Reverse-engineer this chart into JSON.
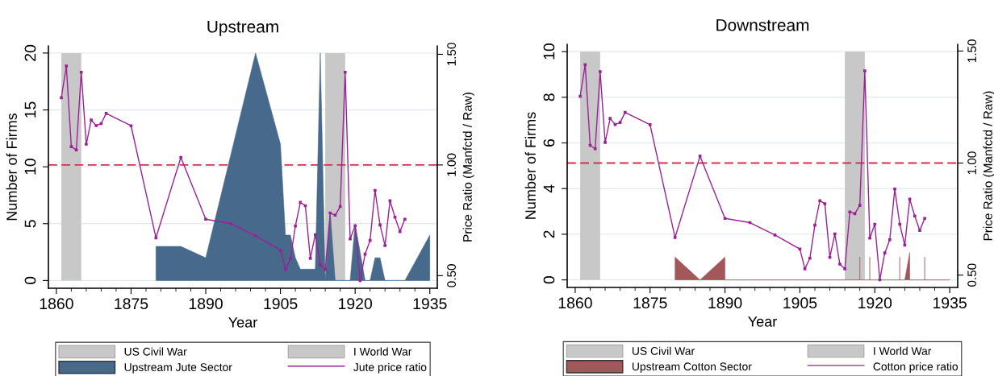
{
  "chart_data": [
    {
      "type": "area",
      "title": "Upstream",
      "xlabel": "Year",
      "ylabel": "Number of Firms",
      "y2label": "Price Ratio (Manfctd / Raw)",
      "xlim": [
        1858.4,
        1936.5
      ],
      "xticks": [
        1860,
        {
          "value": 1863,
          "label": null
        },
        {
          "value": 1866,
          "label": null
        },
        {
          "value": 1869,
          "label": null
        },
        {
          "value": 1872,
          "label": null
        },
        1875,
        {
          "value": 1878,
          "label": null
        },
        {
          "value": 1881,
          "label": null
        },
        {
          "value": 1884,
          "label": null
        },
        {
          "value": 1887,
          "label": null
        },
        1890,
        {
          "value": 1893,
          "label": null
        },
        {
          "value": 1896,
          "label": null
        },
        {
          "value": 1899,
          "label": null
        },
        {
          "value": 1902,
          "label": null
        },
        1905,
        {
          "value": 1908,
          "label": null
        },
        {
          "value": 1911,
          "label": null
        },
        {
          "value": 1914,
          "label": null
        },
        {
          "value": 1917,
          "label": null
        },
        1920,
        {
          "value": 1923,
          "label": null
        },
        {
          "value": 1926,
          "label": null
        },
        {
          "value": 1929,
          "label": null
        },
        {
          "value": 1932,
          "label": null
        },
        1935
      ],
      "ylim": [
        -0.68,
        20.63
      ],
      "yticks": [
        0,
        5,
        10,
        15,
        20
      ],
      "y2lim": [
        0.443,
        1.538
      ],
      "y2ticks": [
        {
          "value": 0.5,
          "label": "0.50"
        },
        {
          "value": 1.0,
          "label": "1.00"
        },
        {
          "value": 1.5,
          "label": "1.50"
        }
      ],
      "grid": "y",
      "legend": "bottom",
      "bands": [
        {
          "axis": "x",
          "from": 1861,
          "to": 1865,
          "label": "US Civil War",
          "color": "#c8c8c8"
        },
        {
          "axis": "x",
          "from": 1914,
          "to": 1918,
          "label": "I World War",
          "color": "#c8c8c8"
        }
      ],
      "ref_lines": [
        {
          "axis": "y2",
          "value": 1.0,
          "color": "#d6304c",
          "line_style": "dashed"
        }
      ],
      "series": [
        {
          "name": "Upstream Jute Sector",
          "color": "#476a8c",
          "x": [
            1880,
            1885,
            1890,
            1900,
            1905,
            1906,
            1907,
            1908,
            1909,
            1910,
            1911,
            1912,
            1913,
            1914,
            1915,
            1916,
            1917,
            1918,
            1919,
            1920,
            1922,
            1923,
            1924,
            1925,
            1926,
            1927,
            1928,
            1929,
            1930,
            1935
          ],
          "values": [
            3,
            3,
            2,
            20,
            12,
            4,
            4,
            2,
            1,
            1,
            1,
            1,
            20,
            0,
            6,
            0,
            0,
            0,
            0,
            5,
            0,
            0,
            2,
            2,
            0,
            0,
            0,
            0,
            0,
            4
          ]
        },
        {
          "name": "Jute price ratio",
          "type": "line",
          "axis": "y2",
          "color": "#9b2196",
          "marker": "square",
          "line_style": "solid",
          "x": [
            1861,
            1862,
            1863,
            1864,
            1865,
            1866,
            1867,
            1868,
            1869,
            1870,
            1875,
            1880,
            1885,
            1890,
            1895,
            1900,
            1905,
            1906,
            1907,
            1908,
            1909,
            1910,
            1911,
            1912,
            1913,
            1914,
            1915,
            1916,
            1917,
            1918,
            1919,
            1920,
            1921,
            1922,
            1923,
            1924,
            1925,
            1926,
            1927,
            1928,
            1929,
            1930
          ],
          "values": [
            1.304,
            1.447,
            1.083,
            1.068,
            1.419,
            1.094,
            1.203,
            1.178,
            1.187,
            1.233,
            1.177,
            0.671,
            1.034,
            0.755,
            0.735,
            0.68,
            0.615,
            0.528,
            0.576,
            0.724,
            0.831,
            0.816,
            0.578,
            0.685,
            0.549,
            0.528,
            0.783,
            0.773,
            0.812,
            1.419,
            0.666,
            0.725,
            0.478,
            0.597,
            0.659,
            0.885,
            0.729,
            0.636,
            0.838,
            0.764,
            0.699,
            0.755
          ]
        }
      ]
    },
    {
      "type": "area",
      "title": "Downstream",
      "xlabel": "Year",
      "ylabel": "Number of Firms",
      "y2label": "Price Ratio (Manfctd / Raw)",
      "xlim": [
        1858.4,
        1936.6
      ],
      "xticks": [
        1860,
        {
          "value": 1863,
          "label": null
        },
        {
          "value": 1866,
          "label": null
        },
        {
          "value": 1869,
          "label": null
        },
        {
          "value": 1872,
          "label": null
        },
        1875,
        {
          "value": 1878,
          "label": null
        },
        {
          "value": 1881,
          "label": null
        },
        {
          "value": 1884,
          "label": null
        },
        {
          "value": 1887,
          "label": null
        },
        1890,
        {
          "value": 1893,
          "label": null
        },
        {
          "value": 1896,
          "label": null
        },
        {
          "value": 1899,
          "label": null
        },
        {
          "value": 1902,
          "label": null
        },
        1905,
        {
          "value": 1908,
          "label": null
        },
        {
          "value": 1911,
          "label": null
        },
        {
          "value": 1914,
          "label": null
        },
        {
          "value": 1917,
          "label": null
        },
        1920,
        {
          "value": 1923,
          "label": null
        },
        {
          "value": 1926,
          "label": null
        },
        {
          "value": 1929,
          "label": null
        },
        {
          "value": 1932,
          "label": null
        },
        1935
      ],
      "ylim": [
        -0.33,
        10.32
      ],
      "yticks": [
        0,
        2,
        4,
        6,
        8,
        10
      ],
      "y2lim": [
        0.445,
        1.53
      ],
      "y2ticks": [
        {
          "value": 0.5,
          "label": "0.50"
        },
        {
          "value": 1.0,
          "label": "1.00"
        },
        {
          "value": 1.5,
          "label": "1.50"
        }
      ],
      "grid": "y",
      "legend": "bottom",
      "bands": [
        {
          "axis": "x",
          "from": 1861,
          "to": 1865,
          "label": "US Civil War",
          "color": "#c8c8c8"
        },
        {
          "axis": "x",
          "from": 1914,
          "to": 1918,
          "label": "I World War",
          "color": "#c8c8c8"
        }
      ],
      "ref_lines": [
        {
          "axis": "y2",
          "value": 1.0,
          "color": "#d6304c",
          "line_style": "dashed"
        }
      ],
      "series": [
        {
          "name": "Upstream Cotton Sector",
          "color": "#a3575a",
          "x": [
            1880,
            1885,
            1890,
            1890,
            1917,
            1917,
            1917,
            1919,
            1919,
            1919,
            1925,
            1925,
            1925,
            1926,
            1927,
            1927,
            1930,
            1930,
            1930,
            1935
          ],
          "values": [
            1,
            0,
            1,
            0,
            0,
            1,
            0,
            0,
            1,
            0,
            0,
            1,
            0,
            0,
            1.2,
            0,
            0,
            1,
            0,
            0
          ]
        },
        {
          "name": "Cotton price ratio",
          "type": "line",
          "axis": "y2",
          "color": "#9b2196",
          "marker": "square",
          "line_style": "solid",
          "x": [
            1861,
            1862,
            1863,
            1864,
            1865,
            1866,
            1867,
            1868,
            1869,
            1870,
            1875,
            1880,
            1885,
            1890,
            1895,
            1900,
            1905,
            1906,
            1907,
            1908,
            1909,
            1910,
            1911,
            1912,
            1913,
            1914,
            1915,
            1916,
            1917,
            1918,
            1919,
            1920,
            1921,
            1922,
            1923,
            1924,
            1925,
            1926,
            1927,
            1928,
            1929,
            1930
          ],
          "values": [
            1.298,
            1.439,
            1.079,
            1.064,
            1.408,
            1.092,
            1.199,
            1.172,
            1.181,
            1.226,
            1.171,
            0.668,
            1.031,
            0.753,
            0.734,
            0.679,
            0.616,
            0.528,
            0.575,
            0.723,
            0.832,
            0.818,
            0.579,
            0.684,
            0.549,
            0.528,
            0.782,
            0.774,
            0.811,
            1.411,
            0.665,
            0.727,
            0.479,
            0.599,
            0.658,
            0.884,
            0.727,
            0.634,
            0.839,
            0.764,
            0.699,
            0.753
          ]
        }
      ]
    }
  ]
}
